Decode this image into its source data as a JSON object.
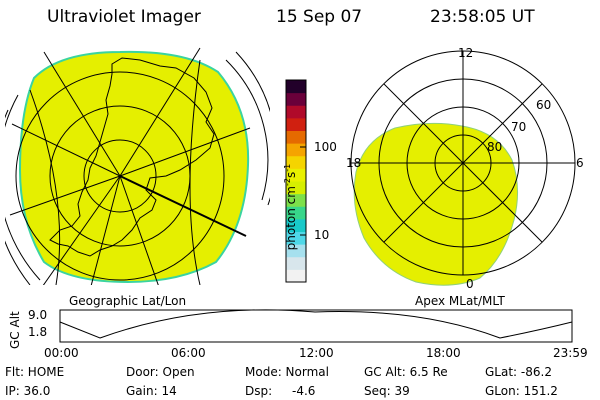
{
  "header": {
    "instrument": "Ultraviolet Imager",
    "date": "15 Sep 07",
    "time": "23:58:05 UT"
  },
  "left_panel": {
    "caption": "Geographic Lat/Lon",
    "fill_color": "#e5ef00",
    "edge_color": "#3ad4a0"
  },
  "right_panel": {
    "caption": "Apex MLat/MLT",
    "mlt_labels": [
      "12",
      "18",
      "6",
      "0"
    ],
    "mlat_labels": [
      "60",
      "70",
      "80"
    ],
    "fill_color": "#e5ef00"
  },
  "colorbar": {
    "unit_label": "photon cm^-2 s^-1",
    "unit_base": "photon cm",
    "unit_exp1": "-2",
    "unit_s": "s",
    "unit_exp2": "-1",
    "ticks": [
      "100",
      "10"
    ],
    "scale": "log",
    "colors": [
      "#f2f2f2",
      "#d8e6ec",
      "#a6e0ee",
      "#4fd8e8",
      "#19c9c9",
      "#38d68a",
      "#7de04a",
      "#d6ee00",
      "#e9f000",
      "#f5d400",
      "#f5a400",
      "#e56a00",
      "#d02010",
      "#b00a2a",
      "#6a003a",
      "#22002a"
    ]
  },
  "altitude_plot": {
    "ylabel": "GC Alt",
    "y_ticks": [
      "9.0",
      "1.8"
    ],
    "x_ticks": [
      "00:00",
      "06:00",
      "12:00",
      "18:00",
      "23:59"
    ]
  },
  "status": {
    "flt": "Flt: HOME",
    "door": "Door: Open",
    "mode": "Mode: Normal",
    "gc_alt": "GC Alt: 6.5 Re",
    "glat": "GLat: -86.2",
    "ip": "IP: 36.0",
    "gain": "Gain: 14",
    "dsp_label": "Dsp:",
    "dsp_value": "-4.6",
    "seq": "Seq: 39",
    "glon": "GLon: 151.2"
  }
}
